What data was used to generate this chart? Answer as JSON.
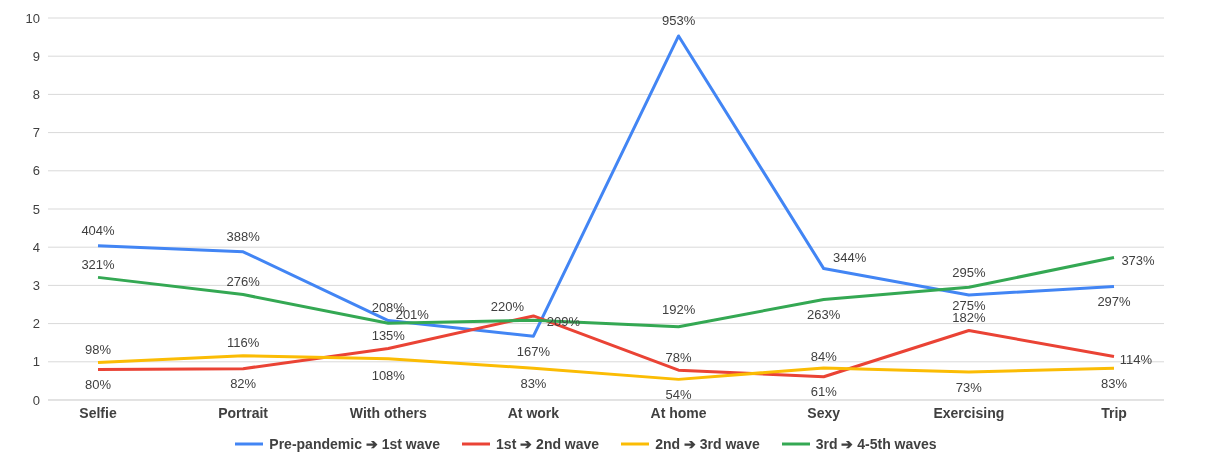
{
  "chart_data": {
    "type": "line",
    "categories": [
      "Selfie",
      "Portrait",
      "With others",
      "At work",
      "At home",
      "Sexy",
      "Exercising",
      "Trip"
    ],
    "ylim": [
      0,
      10
    ],
    "yticks": [
      0,
      1,
      2,
      3,
      4,
      5,
      6,
      7,
      8,
      9,
      10
    ],
    "grid": "y",
    "legend": "bottom",
    "marker": "none",
    "line_style": "solid",
    "series": [
      {
        "name": "Pre-pandemic ➔ 1st wave",
        "color": "#4285f4",
        "values": [
          4.04,
          3.88,
          2.08,
          1.67,
          9.53,
          3.44,
          2.75,
          2.97
        ],
        "value_labels": [
          "404%",
          "388%",
          "208%",
          "167%",
          "953%",
          "344%",
          "275%",
          "297%"
        ]
      },
      {
        "name": "1st ➔ 2nd wave",
        "color": "#ea4335",
        "values": [
          0.8,
          0.82,
          1.35,
          2.2,
          0.78,
          0.61,
          1.82,
          1.14
        ],
        "value_labels": [
          "80%",
          "82%",
          "135%",
          "220%",
          "78%",
          "61%",
          "182%",
          "114%"
        ]
      },
      {
        "name": "2nd ➔ 3rd wave",
        "color": "#fbbc04",
        "values": [
          0.98,
          1.16,
          1.08,
          0.83,
          0.54,
          0.84,
          0.73,
          0.83
        ],
        "value_labels": [
          "98%",
          "116%",
          "108%",
          "83%",
          "54%",
          "84%",
          "73%",
          "83%"
        ]
      },
      {
        "name": "3rd ➔ 4-5th waves",
        "color": "#34a853",
        "values": [
          3.21,
          2.76,
          2.01,
          2.09,
          1.92,
          2.63,
          2.95,
          3.73
        ],
        "value_labels": [
          "321%",
          "276%",
          "201%",
          "209%",
          "192%",
          "263%",
          "295%",
          "373%"
        ]
      }
    ]
  }
}
